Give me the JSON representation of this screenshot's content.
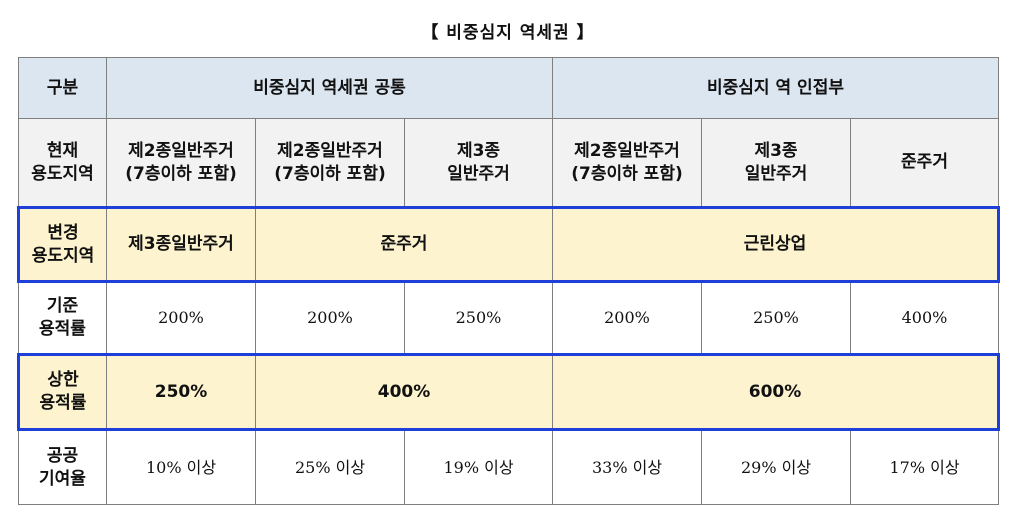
{
  "title": "【 비중심지 역세권 】",
  "header": {
    "label": "구분",
    "group1": "비중심지 역세권 공통",
    "group2": "비중심지 역 인접부"
  },
  "current": {
    "label_line1": "현재",
    "label_line2": "용도지역",
    "cells": [
      {
        "line1": "제2종일반주거",
        "line2": "(7층이하 포함)"
      },
      {
        "line1": "제2종일반주거",
        "line2": "(7층이하 포함)"
      },
      {
        "line1": "제3종",
        "line2": "일반주거"
      },
      {
        "line1": "제2종일반주거",
        "line2": "(7층이하 포함)"
      },
      {
        "line1": "제3종",
        "line2": "일반주거"
      },
      {
        "line1": "준주거",
        "line2": ""
      }
    ]
  },
  "changed": {
    "label_line1": "변경",
    "label_line2": "용도지역",
    "cells": [
      "제3종일반주거",
      "준주거",
      "근린상업"
    ]
  },
  "base_far": {
    "label_line1": "기준",
    "label_line2": "용적률",
    "values": [
      "200%",
      "200%",
      "250%",
      "200%",
      "250%",
      "400%"
    ]
  },
  "max_far": {
    "label_line1": "상한",
    "label_line2": "용적률",
    "values": [
      "250%",
      "400%",
      "600%"
    ]
  },
  "contribution": {
    "label_line1": "공공",
    "label_line2": "기여율",
    "values": [
      "10% 이상",
      "25% 이상",
      "19% 이상",
      "33% 이상",
      "29% 이상",
      "17% 이상"
    ]
  }
}
